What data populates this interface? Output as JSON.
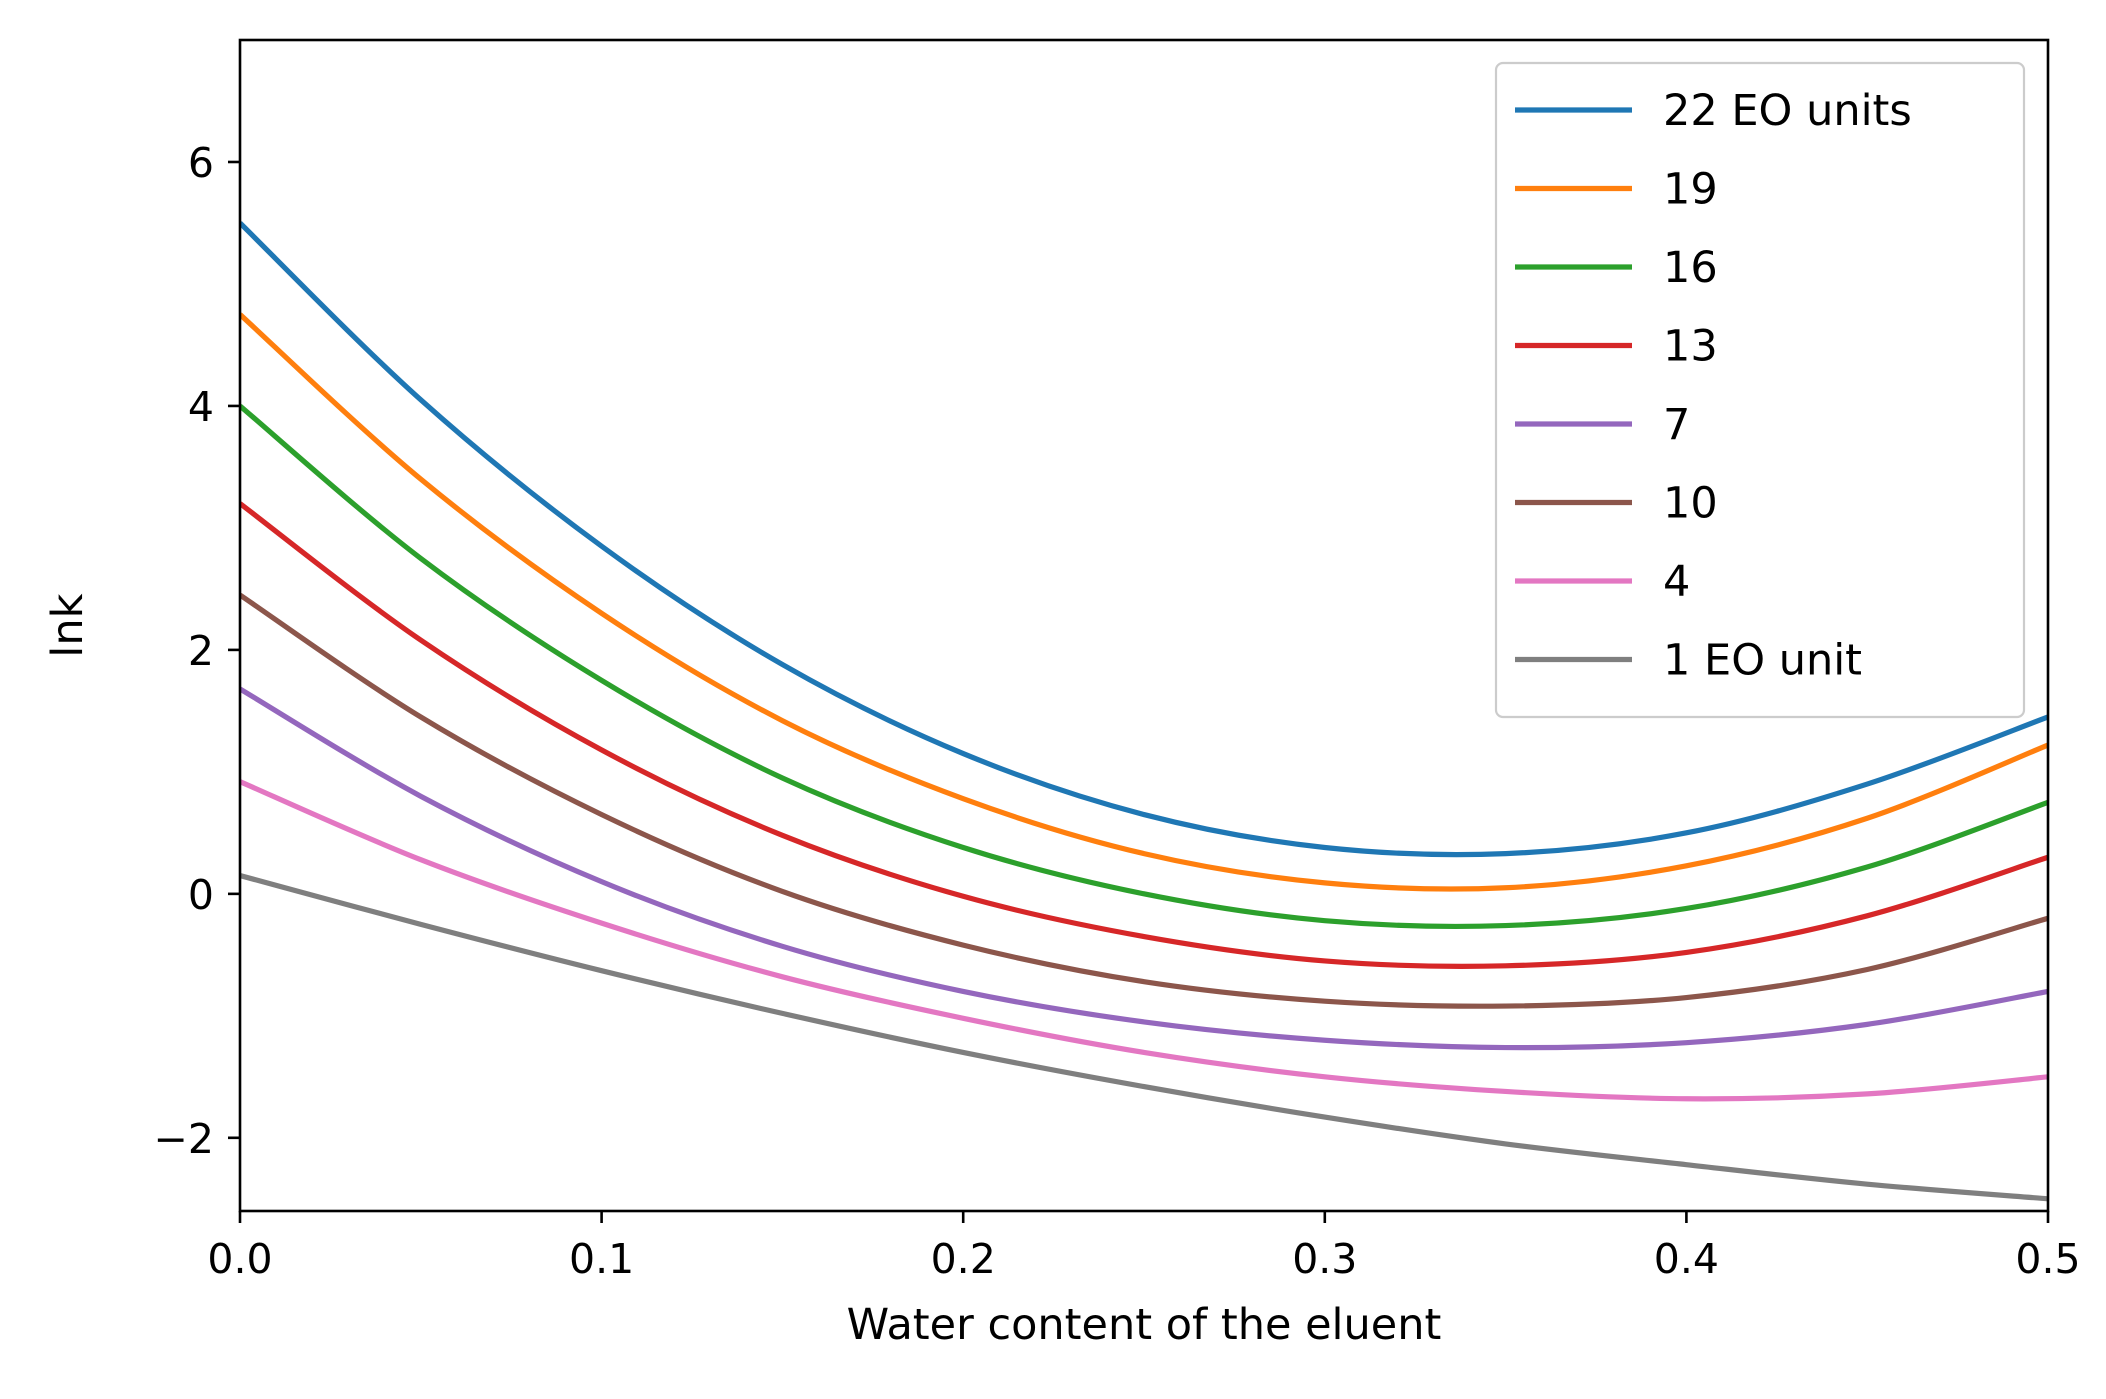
{
  "chart_data": {
    "type": "line",
    "title": "",
    "xlabel": "Water content of the eluent",
    "ylabel": "lnk",
    "xlim": [
      0.0,
      0.5
    ],
    "ylim": [
      -2.6,
      7.0
    ],
    "xticks": [
      0.0,
      0.1,
      0.2,
      0.3,
      0.4,
      0.5
    ],
    "xtick_labels": [
      "0.0",
      "0.1",
      "0.2",
      "0.3",
      "0.4",
      "0.5"
    ],
    "yticks": [
      -2,
      0,
      2,
      4,
      6
    ],
    "ytick_labels": [
      "−2",
      "0",
      "2",
      "4",
      "6"
    ],
    "grid": false,
    "legend_position": "top-right",
    "x": [
      0.0,
      0.05,
      0.1,
      0.15,
      0.2,
      0.25,
      0.3,
      0.35,
      0.4,
      0.45,
      0.5
    ],
    "series": [
      {
        "name": "22  EO units",
        "color": "#1f77b4",
        "values": [
          5.5,
          4.05,
          2.85,
          1.88,
          1.15,
          0.65,
          0.38,
          0.33,
          0.5,
          0.9,
          1.45
        ]
      },
      {
        "name": "19",
        "color": "#ff7f0e",
        "values": [
          4.75,
          3.4,
          2.3,
          1.42,
          0.78,
          0.33,
          0.09,
          0.05,
          0.23,
          0.62,
          1.22
        ]
      },
      {
        "name": "16",
        "color": "#2ca02c",
        "values": [
          4.0,
          2.75,
          1.75,
          0.95,
          0.38,
          0.0,
          -0.22,
          -0.26,
          -0.12,
          0.22,
          0.75
        ]
      },
      {
        "name": "13",
        "color": "#d62728",
        "values": [
          3.2,
          2.08,
          1.18,
          0.48,
          -0.02,
          -0.35,
          -0.55,
          -0.59,
          -0.48,
          -0.18,
          0.3
        ]
      },
      {
        "name": "7",
        "color": "#9467bd",
        "values": [
          1.68,
          0.8,
          0.1,
          -0.43,
          -0.8,
          -1.05,
          -1.2,
          -1.26,
          -1.22,
          -1.07,
          -0.8
        ]
      },
      {
        "name": "10",
        "color": "#8c564b",
        "values": [
          2.45,
          1.45,
          0.65,
          0.02,
          -0.42,
          -0.72,
          -0.88,
          -0.92,
          -0.85,
          -0.62,
          -0.2
        ]
      },
      {
        "name": "4",
        "color": "#e377c2",
        "values": [
          0.92,
          0.28,
          -0.24,
          -0.68,
          -1.02,
          -1.3,
          -1.5,
          -1.62,
          -1.68,
          -1.64,
          -1.5
        ]
      },
      {
        "name": "1 EO unit",
        "color": "#7f7f7f",
        "values": [
          0.15,
          -0.25,
          -0.63,
          -0.98,
          -1.3,
          -1.58,
          -1.83,
          -2.05,
          -2.22,
          -2.38,
          -2.5
        ]
      }
    ]
  }
}
